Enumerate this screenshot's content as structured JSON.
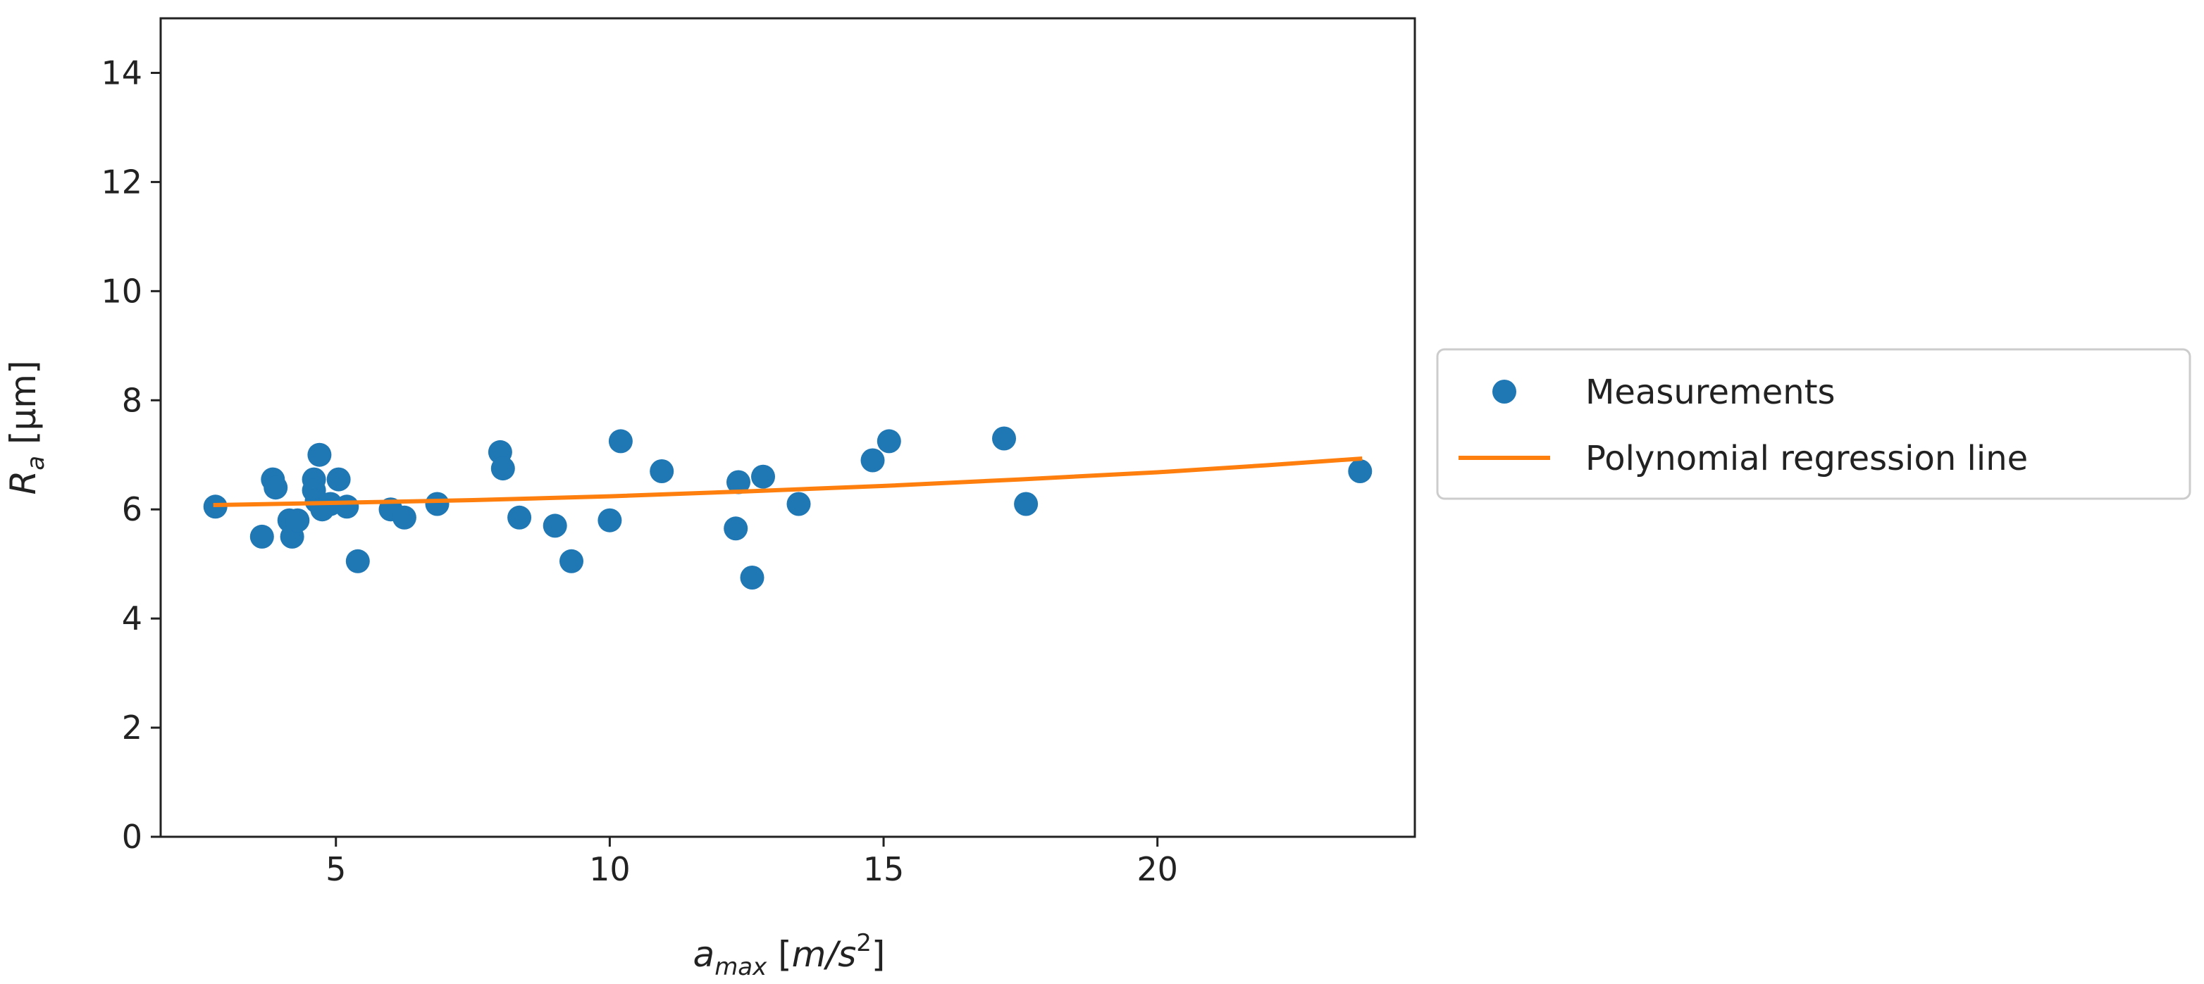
{
  "chart_data": {
    "type": "scatter",
    "title": "",
    "xlabel": {
      "main": "a",
      "sub": "max",
      "unit_open": " [",
      "unit_base": "m/s",
      "unit_sup": "2",
      "unit_close": "]"
    },
    "ylabel": {
      "main": "R",
      "sub": "a",
      "unit": " [μm]"
    },
    "xlim": [
      1.8,
      24.7
    ],
    "ylim": [
      0,
      15
    ],
    "xticks": [
      5,
      10,
      15,
      20
    ],
    "yticks": [
      0,
      2,
      4,
      6,
      8,
      10,
      12,
      14
    ],
    "grid": false,
    "legend_position": "outside-right",
    "series": [
      {
        "name": "Measurements",
        "kind": "scatter",
        "color": "#1f77b4",
        "points": [
          {
            "x": 2.8,
            "y": 6.05
          },
          {
            "x": 3.65,
            "y": 5.5
          },
          {
            "x": 3.85,
            "y": 6.55
          },
          {
            "x": 3.9,
            "y": 6.4
          },
          {
            "x": 4.15,
            "y": 5.8
          },
          {
            "x": 4.2,
            "y": 5.5
          },
          {
            "x": 4.3,
            "y": 5.8
          },
          {
            "x": 4.6,
            "y": 6.55
          },
          {
            "x": 4.6,
            "y": 6.35
          },
          {
            "x": 4.65,
            "y": 6.15
          },
          {
            "x": 4.7,
            "y": 7.0
          },
          {
            "x": 4.75,
            "y": 6.0
          },
          {
            "x": 4.9,
            "y": 6.1
          },
          {
            "x": 5.05,
            "y": 6.55
          },
          {
            "x": 5.2,
            "y": 6.05
          },
          {
            "x": 5.4,
            "y": 5.05
          },
          {
            "x": 6.0,
            "y": 6.0
          },
          {
            "x": 6.25,
            "y": 5.85
          },
          {
            "x": 6.85,
            "y": 6.1
          },
          {
            "x": 8.0,
            "y": 7.05
          },
          {
            "x": 8.05,
            "y": 6.75
          },
          {
            "x": 8.35,
            "y": 5.85
          },
          {
            "x": 9.0,
            "y": 5.7
          },
          {
            "x": 9.3,
            "y": 5.05
          },
          {
            "x": 10.0,
            "y": 5.8
          },
          {
            "x": 10.2,
            "y": 7.25
          },
          {
            "x": 10.95,
            "y": 6.7
          },
          {
            "x": 12.3,
            "y": 5.65
          },
          {
            "x": 12.35,
            "y": 6.5
          },
          {
            "x": 12.6,
            "y": 4.75
          },
          {
            "x": 12.8,
            "y": 6.6
          },
          {
            "x": 13.45,
            "y": 6.1
          },
          {
            "x": 14.8,
            "y": 6.9
          },
          {
            "x": 15.1,
            "y": 7.25
          },
          {
            "x": 17.2,
            "y": 7.3
          },
          {
            "x": 17.6,
            "y": 6.1
          },
          {
            "x": 23.7,
            "y": 6.7
          }
        ]
      },
      {
        "name": "Polynomial regression line",
        "kind": "line",
        "color": "#ff7f0e",
        "points": [
          {
            "x": 2.8,
            "y": 6.08
          },
          {
            "x": 5.0,
            "y": 6.12
          },
          {
            "x": 7.5,
            "y": 6.17
          },
          {
            "x": 10.0,
            "y": 6.24
          },
          {
            "x": 12.5,
            "y": 6.33
          },
          {
            "x": 15.0,
            "y": 6.43
          },
          {
            "x": 17.5,
            "y": 6.55
          },
          {
            "x": 20.0,
            "y": 6.68
          },
          {
            "x": 22.0,
            "y": 6.81
          },
          {
            "x": 23.7,
            "y": 6.93
          }
        ]
      }
    ]
  }
}
